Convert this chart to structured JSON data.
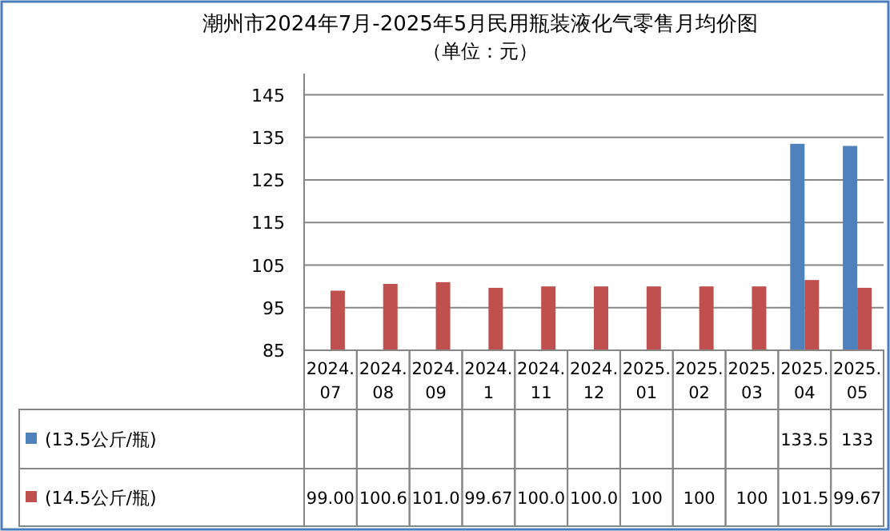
{
  "chart_data": {
    "type": "bar",
    "title": "潮州市2024年7月-2025年5月民用瓶装液化气零售月均价图",
    "subtitle": "（单位：元）",
    "categories": [
      "2024.07",
      "2024.08",
      "2024.09",
      "2024.1",
      "2024.11",
      "2024.12",
      "2025.01",
      "2025.02",
      "2025.03",
      "2025.04",
      "2025.05"
    ],
    "series": [
      {
        "name": "(13.5公斤/瓶)",
        "color": "#4f81bd",
        "values": [
          null,
          null,
          null,
          null,
          null,
          null,
          null,
          null,
          null,
          133.5,
          133
        ],
        "value_labels": [
          null,
          null,
          null,
          null,
          null,
          null,
          null,
          null,
          null,
          "133.5",
          "133"
        ]
      },
      {
        "name": "(14.5公斤/瓶)",
        "color": "#c0504d",
        "values": [
          99.0,
          100.6,
          101.0,
          99.67,
          100.0,
          100.0,
          100,
          100,
          100,
          101.5,
          99.67
        ],
        "value_labels": [
          "99.00",
          "100.6",
          "101.0",
          "99.67",
          "100.0",
          "100.0",
          "100",
          "100",
          "100",
          "101.5",
          "99.67"
        ]
      }
    ],
    "ylim": [
      85,
      150
    ],
    "yticks": [
      85,
      95,
      105,
      115,
      125,
      135,
      145
    ],
    "grid": "y",
    "legend": "bottom"
  }
}
